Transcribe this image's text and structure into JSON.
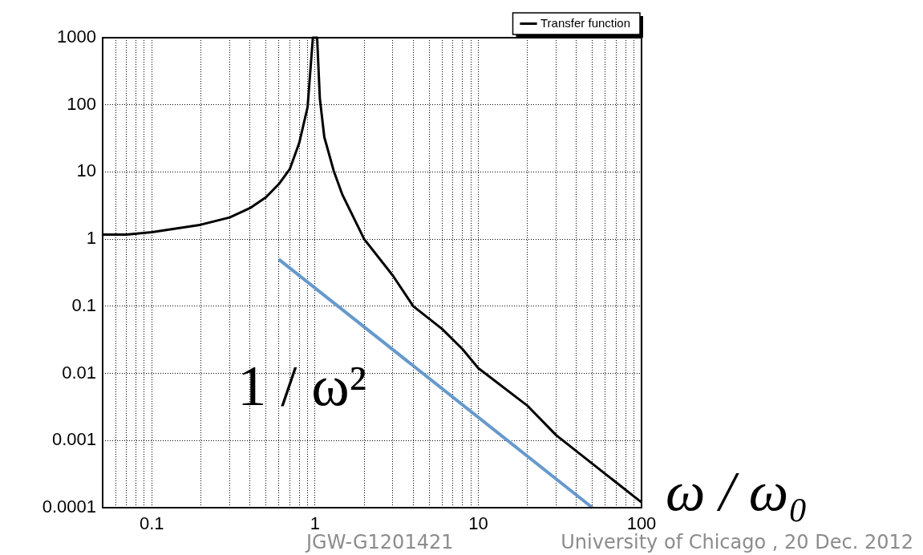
{
  "chart_data": {
    "type": "line",
    "xlabel": "ω / ω₀",
    "log": "xy",
    "grid": true,
    "legend": "top right",
    "marker": "none",
    "line_style": "solid",
    "xlim": [
      0.05,
      100
    ],
    "ylim": [
      0.0001,
      1000
    ],
    "xticks": [
      {
        "value": 0.06,
        "label": null
      },
      {
        "value": 0.07,
        "label": null
      },
      {
        "value": 0.08,
        "label": null
      },
      {
        "value": 0.09,
        "label": null
      },
      0.1,
      {
        "value": 0.2,
        "label": null
      },
      {
        "value": 0.3,
        "label": null
      },
      {
        "value": 0.4,
        "label": null
      },
      {
        "value": 0.5,
        "label": null
      },
      {
        "value": 0.6,
        "label": null
      },
      {
        "value": 0.7,
        "label": null
      },
      {
        "value": 0.8,
        "label": null
      },
      {
        "value": 0.9,
        "label": null
      },
      1,
      {
        "value": 2,
        "label": null
      },
      {
        "value": 3,
        "label": null
      },
      {
        "value": 4,
        "label": null
      },
      {
        "value": 5,
        "label": null
      },
      {
        "value": 6,
        "label": null
      },
      {
        "value": 7,
        "label": null
      },
      {
        "value": 8,
        "label": null
      },
      {
        "value": 9,
        "label": null
      },
      10,
      {
        "value": 20,
        "label": null
      },
      {
        "value": 30,
        "label": null
      },
      {
        "value": 40,
        "label": null
      },
      {
        "value": 50,
        "label": null
      },
      {
        "value": 60,
        "label": null
      },
      {
        "value": 70,
        "label": null
      },
      {
        "value": 80,
        "label": null
      },
      {
        "value": 90,
        "label": null
      },
      100
    ],
    "yticks": [
      0.0001,
      0.001,
      0.01,
      0.1,
      1,
      10,
      100,
      1000
    ],
    "series": [
      {
        "name": "Transfer function",
        "color": "#000000",
        "x": [
          0.05,
          0.07,
          0.1,
          0.2,
          0.3,
          0.4,
          0.5,
          0.6,
          0.7,
          0.8,
          0.9,
          0.97,
          1.03,
          1.07,
          1.14,
          1.3,
          1.47,
          2,
          3,
          4,
          6,
          8,
          10,
          20,
          30,
          100
        ],
        "values": [
          1.17,
          1.17,
          1.27,
          1.64,
          2.1,
          2.9,
          4.2,
          6.6,
          11,
          27,
          92,
          1000,
          1000,
          125,
          33,
          10.5,
          4.6,
          1,
          0.285,
          0.1,
          0.046,
          0.023,
          0.012,
          0.0033,
          0.0012,
          0.00012
        ]
      },
      {
        "color": "#6699cc",
        "x": [
          0.6,
          50
        ],
        "values": [
          0.5,
          0.0001
        ]
      }
    ],
    "annotations": [
      "1 / ω²",
      "JGW-G1201421",
      "University of Chicago , 20 Dec. 2012"
    ]
  }
}
